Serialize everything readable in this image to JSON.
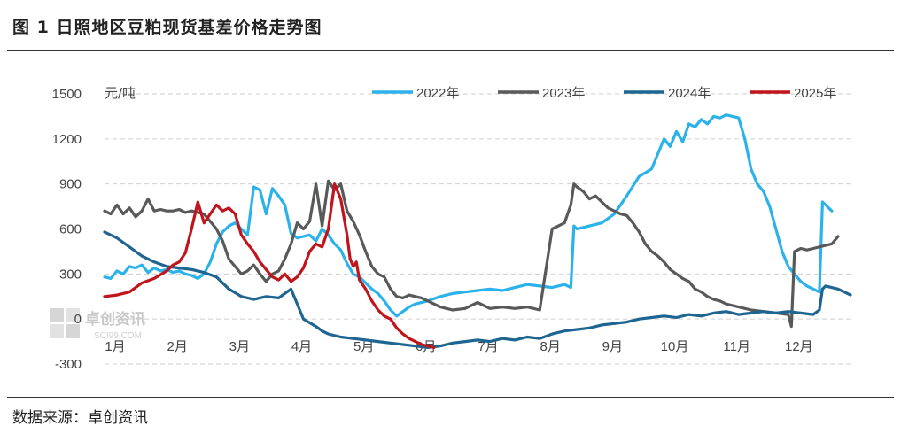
{
  "header": {
    "title": "图 1  日照地区豆粕现货基差价格走势图"
  },
  "footer": {
    "source": "数据来源：卓创资讯"
  },
  "watermark": {
    "name": "卓创资讯",
    "url": "SCI99.COM"
  },
  "chart_data": {
    "type": "line",
    "title": "图 1  日照地区豆粕现货基差价格走势图",
    "ylabel": "元/吨",
    "xlabel": "",
    "ylim": [
      -300,
      1500
    ],
    "yticks": [
      -300,
      0,
      300,
      600,
      900,
      1200,
      1500
    ],
    "yticks_labels": [
      "-300",
      "0",
      "300",
      "600",
      "900",
      "1200",
      "1500"
    ],
    "xlim": [
      0,
      12
    ],
    "x_ticks": [
      "1月",
      "2月",
      "3月",
      "4月",
      "5月",
      "6月",
      "7月",
      "8月",
      "9月",
      "10月",
      "11月",
      "12月"
    ],
    "grid": "horizontal dashed",
    "legend_position": "top-right",
    "series": [
      {
        "name": "2022年",
        "color": "#2bb2ea",
        "x": [
          0,
          0.1,
          0.2,
          0.3,
          0.4,
          0.5,
          0.6,
          0.7,
          0.8,
          0.9,
          1.0,
          1.1,
          1.2,
          1.3,
          1.4,
          1.5,
          1.6,
          1.7,
          1.8,
          1.9,
          2.0,
          2.1,
          2.2,
          2.3,
          2.4,
          2.5,
          2.6,
          2.7,
          2.8,
          2.9,
          3.0,
          3.1,
          3.2,
          3.3,
          3.4,
          3.5,
          3.6,
          3.7,
          3.8,
          3.9,
          4.0,
          4.1,
          4.2,
          4.3,
          4.4,
          4.5,
          4.6,
          4.7,
          4.8,
          4.9,
          5.0,
          5.2,
          5.4,
          5.6,
          5.8,
          6.0,
          6.2,
          6.4,
          6.6,
          6.8,
          7.0,
          7.2,
          7.4,
          7.5,
          7.55,
          7.6,
          7.8,
          8.0,
          8.2,
          8.4,
          8.6,
          8.8,
          8.9,
          9.0,
          9.1,
          9.2,
          9.3,
          9.4,
          9.5,
          9.6,
          9.7,
          9.8,
          9.9,
          10.0,
          10.1,
          10.2,
          10.3,
          10.4,
          10.5,
          10.6,
          10.7,
          10.8,
          10.9,
          11.0,
          11.1,
          11.2,
          11.3,
          11.4,
          11.5,
          11.55,
          11.6,
          11.7
        ],
        "y": [
          280,
          270,
          320,
          300,
          350,
          340,
          360,
          310,
          340,
          320,
          330,
          310,
          320,
          300,
          290,
          270,
          300,
          380,
          500,
          580,
          620,
          640,
          600,
          560,
          880,
          860,
          700,
          870,
          820,
          760,
          570,
          540,
          550,
          560,
          520,
          600,
          560,
          500,
          460,
          370,
          300,
          280,
          240,
          200,
          170,
          120,
          60,
          20,
          50,
          80,
          100,
          120,
          150,
          170,
          180,
          190,
          200,
          190,
          210,
          230,
          220,
          210,
          230,
          210,
          620,
          600,
          620,
          640,
          700,
          820,
          950,
          1000,
          1100,
          1200,
          1150,
          1250,
          1180,
          1300,
          1280,
          1330,
          1300,
          1350,
          1340,
          1360,
          1350,
          1340,
          1200,
          1000,
          900,
          850,
          750,
          600,
          450,
          350,
          300,
          250,
          220,
          200,
          180,
          780,
          760,
          720
        ]
      },
      {
        "name": "2023年",
        "color": "#595959",
        "x": [
          0,
          0.1,
          0.2,
          0.3,
          0.4,
          0.5,
          0.6,
          0.7,
          0.8,
          0.9,
          1.0,
          1.1,
          1.2,
          1.3,
          1.4,
          1.5,
          1.6,
          1.7,
          1.8,
          1.9,
          2.0,
          2.1,
          2.2,
          2.3,
          2.4,
          2.5,
          2.6,
          2.7,
          2.8,
          2.9,
          3.0,
          3.1,
          3.2,
          3.3,
          3.4,
          3.5,
          3.6,
          3.7,
          3.8,
          3.9,
          4.0,
          4.1,
          4.2,
          4.3,
          4.4,
          4.5,
          4.6,
          4.7,
          4.8,
          4.9,
          5.0,
          5.1,
          5.2,
          5.3,
          5.4,
          5.5,
          5.6,
          5.8,
          6.0,
          6.2,
          6.4,
          6.6,
          6.8,
          7.0,
          7.2,
          7.4,
          7.5,
          7.55,
          7.6,
          7.7,
          7.8,
          7.9,
          8.0,
          8.1,
          8.2,
          8.3,
          8.4,
          8.5,
          8.6,
          8.7,
          8.8,
          8.9,
          9.0,
          9.1,
          9.2,
          9.3,
          9.4,
          9.5,
          9.6,
          9.7,
          9.8,
          9.9,
          10.0,
          10.2,
          10.4,
          10.6,
          10.8,
          11.0,
          11.05,
          11.1,
          11.2,
          11.3,
          11.4,
          11.5,
          11.6,
          11.7,
          11.8
        ],
        "y": [
          720,
          700,
          760,
          700,
          740,
          680,
          720,
          800,
          720,
          730,
          720,
          720,
          730,
          710,
          720,
          710,
          700,
          650,
          600,
          520,
          400,
          350,
          300,
          320,
          360,
          300,
          250,
          300,
          320,
          400,
          500,
          640,
          600,
          650,
          900,
          620,
          920,
          860,
          900,
          720,
          650,
          560,
          450,
          350,
          300,
          280,
          200,
          150,
          140,
          160,
          150,
          140,
          120,
          100,
          80,
          70,
          60,
          70,
          110,
          70,
          80,
          70,
          80,
          60,
          600,
          640,
          760,
          900,
          880,
          850,
          800,
          820,
          780,
          740,
          720,
          700,
          690,
          640,
          580,
          500,
          450,
          420,
          380,
          330,
          300,
          270,
          250,
          200,
          180,
          150,
          130,
          120,
          100,
          80,
          60,
          50,
          40,
          30,
          -50,
          450,
          470,
          460,
          470,
          480,
          490,
          500,
          550
        ]
      },
      {
        "name": "2024年",
        "color": "#1f6591",
        "x": [
          0,
          0.2,
          0.4,
          0.6,
          0.8,
          1.0,
          1.2,
          1.4,
          1.6,
          1.8,
          2.0,
          2.2,
          2.4,
          2.6,
          2.8,
          3.0,
          3.2,
          3.4,
          3.5,
          3.6,
          3.8,
          4.0,
          4.2,
          4.4,
          4.6,
          4.8,
          5.0,
          5.2,
          5.4,
          5.6,
          5.8,
          6.0,
          6.2,
          6.4,
          6.6,
          6.8,
          7.0,
          7.2,
          7.4,
          7.6,
          7.8,
          8.0,
          8.2,
          8.4,
          8.6,
          8.8,
          9.0,
          9.2,
          9.4,
          9.6,
          9.8,
          10.0,
          10.2,
          10.4,
          10.6,
          10.8,
          11.0,
          11.2,
          11.4,
          11.5,
          11.55,
          11.6,
          11.8,
          12.0
        ],
        "y": [
          580,
          540,
          480,
          420,
          380,
          350,
          340,
          330,
          310,
          280,
          200,
          150,
          130,
          150,
          140,
          200,
          0,
          -50,
          -80,
          -100,
          -120,
          -130,
          -140,
          -150,
          -160,
          -170,
          -180,
          -190,
          -180,
          -160,
          -150,
          -140,
          -150,
          -130,
          -140,
          -120,
          -130,
          -100,
          -80,
          -70,
          -60,
          -40,
          -30,
          -20,
          0,
          10,
          20,
          10,
          30,
          20,
          40,
          50,
          30,
          40,
          50,
          40,
          50,
          40,
          30,
          60,
          200,
          220,
          200,
          160
        ]
      },
      {
        "name": "2025年",
        "color": "#c0151c",
        "x": [
          0,
          0.2,
          0.4,
          0.6,
          0.8,
          1.0,
          1.1,
          1.2,
          1.3,
          1.4,
          1.5,
          1.6,
          1.7,
          1.8,
          1.9,
          2.0,
          2.1,
          2.2,
          2.3,
          2.4,
          2.5,
          2.6,
          2.7,
          2.8,
          2.9,
          3.0,
          3.1,
          3.2,
          3.3,
          3.4,
          3.5,
          3.6,
          3.7,
          3.8,
          3.9,
          3.95,
          4.0,
          4.05,
          4.1,
          4.2,
          4.3,
          4.4,
          4.5,
          4.6,
          4.7,
          4.8,
          4.9,
          5.0,
          5.1,
          5.2,
          5.3
        ],
        "y": [
          150,
          160,
          180,
          240,
          270,
          320,
          360,
          380,
          440,
          600,
          780,
          640,
          700,
          760,
          720,
          740,
          700,
          560,
          500,
          450,
          380,
          330,
          280,
          260,
          300,
          250,
          280,
          340,
          450,
          500,
          480,
          600,
          900,
          800,
          560,
          400,
          350,
          380,
          260,
          200,
          120,
          60,
          20,
          0,
          -60,
          -100,
          -130,
          -150,
          -170,
          -180,
          -190
        ]
      }
    ]
  }
}
